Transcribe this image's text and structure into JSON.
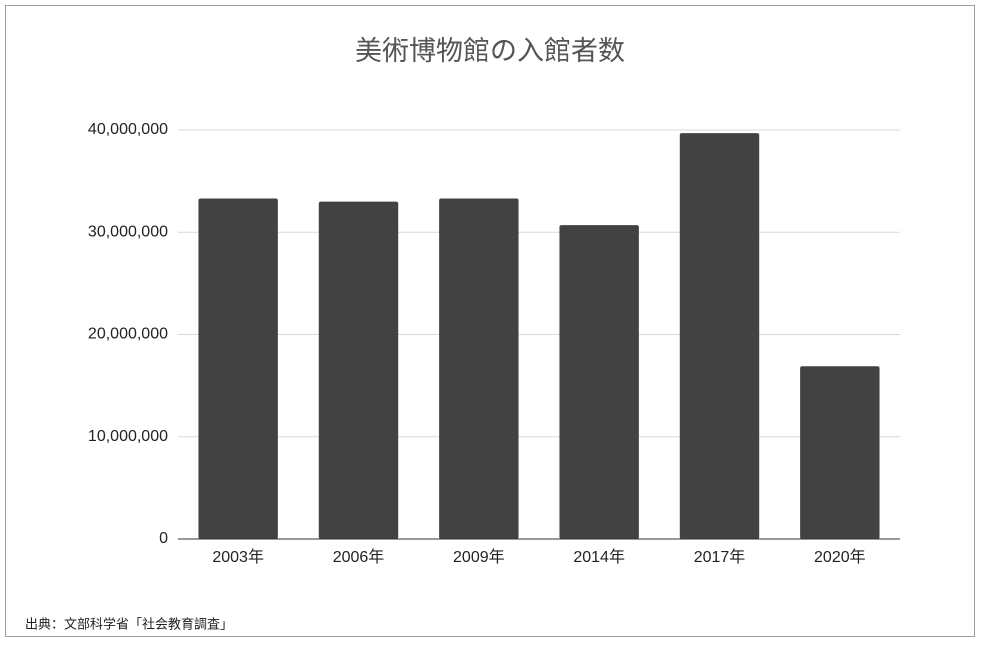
{
  "chart_data": {
    "type": "bar",
    "title": "美術博物館の入館者数",
    "categories": [
      "2003年",
      "2006年",
      "2009年",
      "2014年",
      "2017年",
      "2020年"
    ],
    "values": [
      33300000,
      33000000,
      33300000,
      30700000,
      39700000,
      16900000
    ],
    "color": "#424242",
    "ylim": [
      0,
      40000000
    ],
    "yticks": [
      0,
      {
        "value": 10000000,
        "label": "10,000,000"
      },
      {
        "value": 20000000,
        "label": "20,000,000"
      },
      {
        "value": 30000000,
        "label": "30,000,000"
      },
      {
        "value": 40000000,
        "label": "40,000,000"
      }
    ],
    "grid": true,
    "source": "出典：文部科学省「社会教育調査」"
  }
}
